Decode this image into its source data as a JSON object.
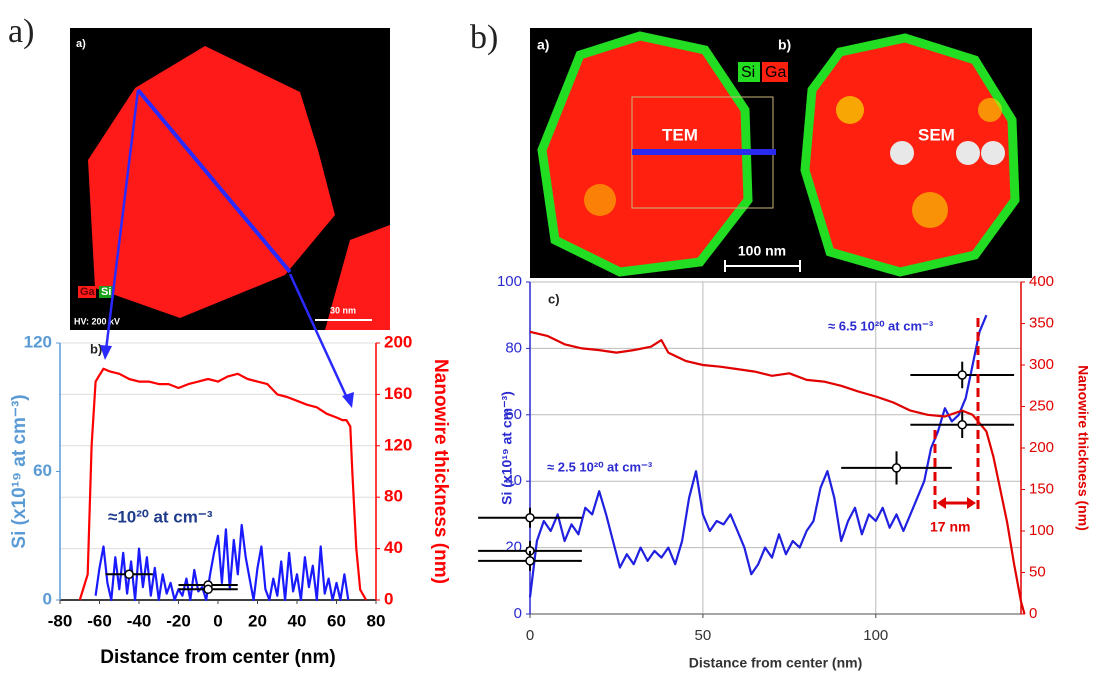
{
  "panel_labels": [
    "a)",
    "b)"
  ],
  "micrographs": [
    {
      "labels": [
        "a)",
        "Ga",
        "Si",
        "HV: 200 kV",
        "30 nm"
      ]
    },
    {
      "labels": [
        "a)",
        "b)",
        "Si",
        "Ga",
        "TEM",
        "SEM",
        "100 nm"
      ]
    }
  ],
  "chart_data": [
    {
      "type": "line",
      "panel_label": "b)",
      "x_label": "Distance from center (nm)",
      "y_label": "Si (x10¹⁹ at cm⁻³)",
      "y2_label": "Nanowire thickness (nm)",
      "xlim": [
        -80,
        80
      ],
      "xticks": [
        -80,
        -60,
        -40,
        -20,
        0,
        20,
        40,
        60,
        80
      ],
      "ylim": [
        0,
        120
      ],
      "yticks": [
        0,
        60,
        120
      ],
      "y2lim": [
        0,
        200
      ],
      "y2ticks": [
        0,
        40,
        80,
        120,
        160,
        200
      ],
      "grid": "y2",
      "y_color": "#5b9bd5",
      "y2_color": "#ff0000",
      "annotations": [
        "≈10²⁰ at cm⁻³"
      ],
      "series": [
        {
          "name": "Si",
          "color": "#1a1aff",
          "x": [
            -62,
            -60,
            -58,
            -56,
            -54,
            -52,
            -50,
            -48,
            -46,
            -44,
            -42,
            -40,
            -38,
            -36,
            -34,
            -32,
            -30,
            -28,
            -26,
            -24,
            -22,
            -20,
            -18,
            -16,
            -14,
            -12,
            -10,
            -8,
            -6,
            -4,
            -2,
            0,
            2,
            4,
            6,
            8,
            10,
            12,
            14,
            16,
            18,
            20,
            22,
            24,
            26,
            28,
            30,
            32,
            34,
            36,
            38,
            40,
            42,
            44,
            46,
            48,
            50,
            52,
            54,
            56,
            58,
            60,
            62,
            64,
            66
          ],
          "values": [
            2,
            15,
            25,
            8,
            0,
            20,
            5,
            22,
            3,
            18,
            0,
            24,
            6,
            20,
            2,
            15,
            0,
            12,
            3,
            8,
            0,
            5,
            2,
            10,
            0,
            14,
            4,
            6,
            0,
            12,
            22,
            30,
            8,
            33,
            5,
            28,
            12,
            35,
            20,
            10,
            0,
            15,
            25,
            5,
            0,
            10,
            2,
            18,
            0,
            22,
            4,
            12,
            0,
            20,
            6,
            16,
            0,
            25,
            3,
            10,
            0,
            8,
            0,
            12,
            0
          ]
        },
        {
          "name": "Nanowire thickness",
          "color": "#ff0000",
          "axis": "y2",
          "x": [
            -70,
            -66,
            -64,
            -62,
            -60,
            -58,
            -55,
            -50,
            -45,
            -40,
            -35,
            -30,
            -25,
            -20,
            -15,
            -10,
            -5,
            0,
            5,
            10,
            15,
            20,
            25,
            30,
            35,
            40,
            45,
            50,
            55,
            60,
            63,
            65,
            67,
            68,
            70,
            72,
            75
          ],
          "values": [
            0,
            20,
            120,
            170,
            175,
            180,
            178,
            176,
            172,
            170,
            170,
            168,
            168,
            165,
            168,
            170,
            172,
            170,
            174,
            176,
            172,
            170,
            168,
            160,
            158,
            155,
            152,
            150,
            145,
            142,
            140,
            140,
            135,
            100,
            40,
            8,
            0
          ]
        }
      ],
      "error_points": {
        "color": "#000000",
        "x": [
          -45,
          -5,
          -5
        ],
        "y": [
          12,
          7,
          5
        ],
        "xerr": [
          12,
          15,
          15
        ]
      }
    },
    {
      "type": "line",
      "panel_label": "c)",
      "x_label": "Distance from center (nm)",
      "y_label": "Si (x10¹⁹ at cm⁻³)",
      "y2_label": "Nanowire thickness (nm)",
      "xlim": [
        0,
        142
      ],
      "xticks": [
        0,
        50,
        100
      ],
      "ylim": [
        0,
        100
      ],
      "yticks": [
        0,
        20,
        40,
        60,
        80,
        100
      ],
      "y2lim": [
        0,
        400
      ],
      "y2ticks": [
        0,
        50,
        100,
        150,
        200,
        250,
        300,
        350,
        400
      ],
      "grid": "xy",
      "y_color": "#2b2bd0",
      "y2_color": "#e00000",
      "annotations": [
        "≈ 2.5 10²⁰ at cm⁻³",
        "≈ 6.5 10²⁰ at cm⁻³",
        "17 nm"
      ],
      "series": [
        {
          "name": "Si",
          "color": "#2020e0",
          "x": [
            0,
            2,
            4,
            6,
            8,
            10,
            12,
            14,
            16,
            18,
            20,
            22,
            24,
            26,
            28,
            30,
            32,
            34,
            36,
            38,
            40,
            42,
            44,
            46,
            48,
            50,
            52,
            54,
            56,
            58,
            60,
            62,
            64,
            66,
            68,
            70,
            72,
            74,
            76,
            78,
            80,
            82,
            84,
            86,
            88,
            90,
            92,
            94,
            96,
            98,
            100,
            102,
            104,
            106,
            108,
            110,
            112,
            114,
            116,
            118,
            120,
            122,
            124,
            126,
            128,
            130,
            132
          ],
          "values": [
            5,
            22,
            28,
            25,
            30,
            22,
            27,
            24,
            32,
            30,
            37,
            30,
            22,
            14,
            18,
            15,
            20,
            16,
            19,
            17,
            20,
            15,
            22,
            35,
            43,
            30,
            25,
            28,
            27,
            30,
            25,
            20,
            12,
            15,
            20,
            17,
            24,
            18,
            22,
            20,
            25,
            28,
            38,
            43,
            35,
            22,
            28,
            32,
            24,
            30,
            28,
            32,
            26,
            30,
            25,
            30,
            35,
            40,
            50,
            55,
            62,
            58,
            60,
            65,
            75,
            85,
            90
          ]
        },
        {
          "name": "Nanowire thickness",
          "color": "#e00000",
          "axis": "y2",
          "x": [
            0,
            5,
            10,
            15,
            20,
            25,
            30,
            35,
            38,
            40,
            45,
            50,
            55,
            60,
            65,
            70,
            75,
            80,
            85,
            90,
            95,
            100,
            105,
            110,
            115,
            120,
            125,
            128,
            132,
            134,
            136,
            138,
            140,
            142,
            143
          ],
          "values": [
            340,
            335,
            325,
            320,
            318,
            315,
            318,
            322,
            330,
            315,
            305,
            300,
            298,
            295,
            292,
            287,
            290,
            282,
            280,
            275,
            268,
            262,
            255,
            245,
            240,
            238,
            245,
            240,
            220,
            190,
            150,
            110,
            60,
            15,
            0
          ]
        }
      ],
      "error_points": {
        "color": "#000000",
        "x": [
          0,
          0,
          0,
          106,
          125,
          125
        ],
        "y": [
          29,
          19,
          16,
          44,
          57,
          72
        ],
        "xerr": [
          15,
          15,
          15,
          16,
          15,
          15
        ],
        "yerr": [
          3,
          3,
          3,
          5,
          4,
          4
        ]
      }
    }
  ]
}
